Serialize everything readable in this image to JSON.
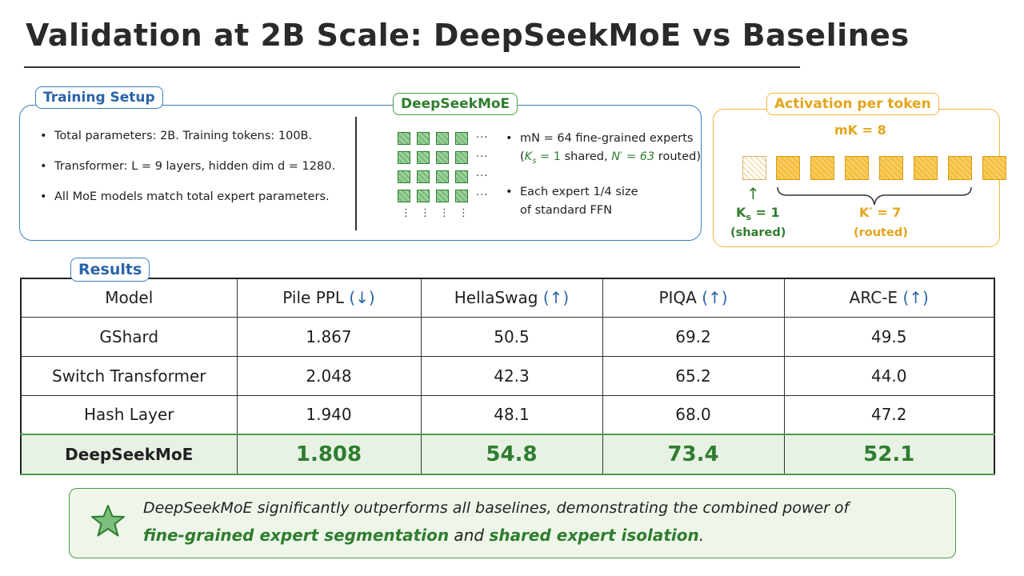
{
  "title": "Validation at 2B Scale: DeepSeekMoE vs Baselines",
  "setup": {
    "label": "Training Setup",
    "bullets": [
      "Total parameters: 2B. Training tokens: 100B.",
      "Transformer: L = 9 layers, hidden dim d = 1280.",
      "All MoE models match total expert parameters."
    ]
  },
  "deepseekmoe": {
    "label": "DeepSeekMoE",
    "ellipsis_h": "···",
    "ellipsis_v": "⋮",
    "bullet1_line1": "mN = 64 fine-grained experts",
    "bullet1_line2_pre": "(",
    "bullet1_ks": "K",
    "bullet1_ks_sub": "s",
    "bullet1_ks_val": " = 1",
    "bullet1_mid": " shared, ",
    "bullet1_np": "N′ = 63",
    "bullet1_post": " routed)",
    "bullet2_line1": "Each expert 1/4 size",
    "bullet2_line2": "of standard FFN"
  },
  "activation": {
    "label": "Activation per token",
    "mk": "mK = 8",
    "arrow": "↑",
    "ks_label": "K",
    "ks_sub": "s",
    "ks_val": " = 1",
    "shared": "(shared)",
    "kprime": "K′ = 7",
    "routed": "(routed)",
    "colors": {
      "shared": "#2f7d2f",
      "routed": "#f6bf3c"
    }
  },
  "results": {
    "label": "Results",
    "headers": [
      {
        "name": "Model",
        "arrow": ""
      },
      {
        "name": "Pile PPL ",
        "arrow": "(↓)"
      },
      {
        "name": "HellaSwag ",
        "arrow": "(↑)"
      },
      {
        "name": "PIQA ",
        "arrow": "(↑)"
      },
      {
        "name": "ARC-E ",
        "arrow": "(↑)"
      }
    ],
    "rows": [
      [
        "GShard",
        "1.867",
        "50.5",
        "69.2",
        "49.5"
      ],
      [
        "Switch Transformer",
        "2.048",
        "42.3",
        "65.2",
        "44.0"
      ],
      [
        "Hash Layer",
        "1.940",
        "48.1",
        "68.0",
        "47.2"
      ]
    ],
    "best_row": [
      "DeepSeekMoE",
      "1.808",
      "54.8",
      "73.4",
      "52.1"
    ]
  },
  "conclusion": {
    "line1": "DeepSeekMoE significantly outperforms all baselines, demonstrating the combined power of",
    "hl1": "fine-grained expert segmentation",
    "and": " and ",
    "hl2": "shared expert isolation",
    "end": "."
  }
}
